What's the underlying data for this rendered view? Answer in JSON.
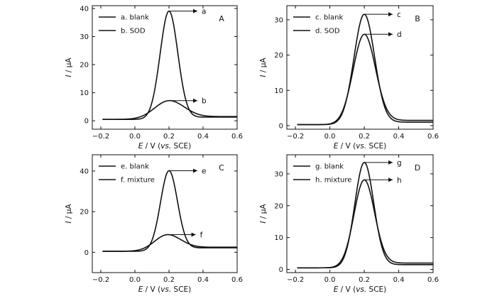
{
  "chart_data": [
    {
      "type": "line",
      "panel_label": "A",
      "xlabel": "E / V (vs. SCE)",
      "ylabel": "I / µA",
      "xlim": [
        -0.25,
        0.6
      ],
      "ylim": [
        -3,
        41
      ],
      "xticks": [
        -0.2,
        0.0,
        0.2,
        0.4,
        0.6
      ],
      "xtick_labels": [
        "−0.2",
        "0.0",
        "0.2",
        "0.4",
        "0.6"
      ],
      "yticks": [
        0,
        10,
        20,
        30,
        40
      ],
      "legend_position": "top-left",
      "grid": false,
      "series": [
        {
          "name": "a. blank",
          "peak_label": "a",
          "peak_x": 0.2,
          "peak_y": 38.5,
          "baseline": 0.5,
          "width": 0.052,
          "tail": 1.3
        },
        {
          "name": "b. SOD",
          "peak_label": "b",
          "peak_x": 0.2,
          "peak_y": 6.6,
          "baseline": 0.5,
          "width": 0.085,
          "tail": 1.5
        }
      ]
    },
    {
      "type": "line",
      "panel_label": "B",
      "xlabel": "E / V (vs. SCE)",
      "ylabel": "I / µA",
      "xlim": [
        -0.25,
        0.6
      ],
      "ylim": [
        -1,
        34
      ],
      "xticks": [
        -0.2,
        0.0,
        0.2,
        0.4,
        0.6
      ],
      "xtick_labels": [
        "−0.2",
        "0.0",
        "0.2",
        "0.4",
        "0.6"
      ],
      "yticks": [
        0,
        10,
        20,
        30
      ],
      "legend_position": "top-left",
      "grid": false,
      "series": [
        {
          "name": "c. blank",
          "peak_label": "c",
          "peak_x": 0.2,
          "peak_y": 31.2,
          "baseline": 0.3,
          "width": 0.06,
          "tail": 1.0
        },
        {
          "name": "d. SOD",
          "peak_label": "d",
          "peak_x": 0.2,
          "peak_y": 25.5,
          "baseline": 0.3,
          "width": 0.065,
          "tail": 1.5
        }
      ]
    },
    {
      "type": "line",
      "panel_label": "C",
      "xlabel": "E / V (vs. SCE)",
      "ylabel": "I / µA",
      "xlim": [
        -0.25,
        0.6
      ],
      "ylim": [
        -10,
        48
      ],
      "xticks": [
        -0.2,
        0.0,
        0.2,
        0.4,
        0.6
      ],
      "xtick_labels": [
        "−0.2",
        "0.0",
        "0.2",
        "0.4",
        "0.6"
      ],
      "yticks": [
        0,
        20,
        40
      ],
      "legend_position": "top-left",
      "grid": false,
      "series": [
        {
          "name": "e. blank",
          "peak_label": "e",
          "peak_x": 0.2,
          "peak_y": 39.5,
          "baseline": 0.5,
          "width": 0.05,
          "tail": 2.2
        },
        {
          "name": "f. mixture",
          "peak_label": "f",
          "peak_x": 0.19,
          "peak_y": 8.0,
          "baseline": 0.5,
          "width": 0.075,
          "tail": 2.5
        }
      ]
    },
    {
      "type": "line",
      "panel_label": "D",
      "xlabel": "E / V (vs. SCE)",
      "ylabel": "I / µA",
      "xlim": [
        -0.25,
        0.6
      ],
      "ylim": [
        -1,
        36
      ],
      "xticks": [
        -0.2,
        0.0,
        0.2,
        0.4,
        0.6
      ],
      "xtick_labels": [
        "−0.2",
        "0.0",
        "0.2",
        "0.4",
        "0.6"
      ],
      "yticks": [
        0,
        10,
        20,
        30
      ],
      "legend_position": "top-left",
      "grid": false,
      "series": [
        {
          "name": "g. blank",
          "peak_label": "g",
          "peak_x": 0.2,
          "peak_y": 33.0,
          "baseline": 0.5,
          "width": 0.055,
          "tail": 1.5
        },
        {
          "name": "h. mixture",
          "peak_label": "h",
          "peak_x": 0.2,
          "peak_y": 27.5,
          "baseline": 0.5,
          "width": 0.06,
          "tail": 2.0
        }
      ]
    }
  ]
}
